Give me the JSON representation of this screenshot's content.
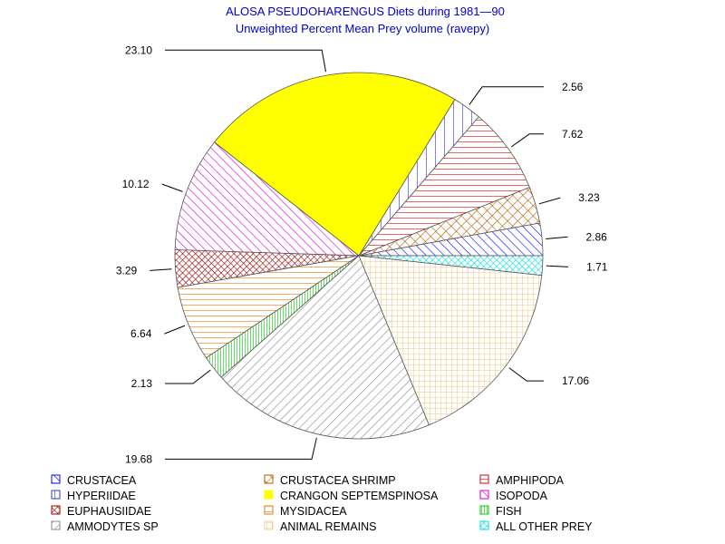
{
  "chart_data": {
    "type": "pie",
    "title": "ALOSA PSEUDOHARENGUS Diets during 1981—90",
    "subtitle": "Unweighted Percent Mean Prey volume (ravepy)",
    "slices": [
      {
        "name": "CRUSTACEA",
        "value": 2.86,
        "label": "2.86",
        "color": "#0000ff",
        "pattern": "diag"
      },
      {
        "name": "CRUSTACEA SHRIMP",
        "value": 3.23,
        "label": "3.23",
        "color": "#b35900",
        "pattern": "cross"
      },
      {
        "name": "AMPHIPODA",
        "value": 7.62,
        "label": "7.62",
        "color": "#e00000",
        "pattern": "hlines"
      },
      {
        "name": "HYPERIIDAE",
        "value": 2.56,
        "label": "2.56",
        "color": "#3333cc",
        "pattern": "vlines"
      },
      {
        "name": "CRANGON SEPTEMSPINOSA",
        "value": 23.1,
        "label": "23.10",
        "color": "#ffff00",
        "pattern": "solid"
      },
      {
        "name": "ISOPODA",
        "value": 10.12,
        "label": "10.12",
        "color": "#cc00cc",
        "pattern": "diag"
      },
      {
        "name": "EUPHAUSIIDAE",
        "value": 3.29,
        "label": "3.29",
        "color": "#990000",
        "pattern": "crossdense"
      },
      {
        "name": "MYSIDACEA",
        "value": 6.64,
        "label": "6.64",
        "color": "#ee7700",
        "pattern": "hlines"
      },
      {
        "name": "FISH",
        "value": 2.13,
        "label": "2.13",
        "color": "#00cc00",
        "pattern": "vdense"
      },
      {
        "name": "AMMODYTES SP",
        "value": 19.68,
        "label": "19.68",
        "color": "#888888",
        "pattern": "diagback"
      },
      {
        "name": "ANIMAL REMAINS",
        "value": 17.06,
        "label": "17.06",
        "color": "#f0d090",
        "pattern": "grid"
      },
      {
        "name": "ALL OTHER PREY",
        "value": 1.71,
        "label": "1.71",
        "color": "#00dddd",
        "pattern": "crossdense"
      }
    ],
    "legend_placement": "bottom",
    "legend_order": [
      "CRUSTACEA",
      "CRUSTACEA SHRIMP",
      "AMPHIPODA",
      "HYPERIIDAE",
      "CRANGON SEPTEMSPINOSA",
      "ISOPODA",
      "EUPHAUSIIDAE",
      "MYSIDACEA",
      "FISH",
      "AMMODYTES SP",
      "ANIMAL REMAINS",
      "ALL OTHER PREY"
    ]
  }
}
